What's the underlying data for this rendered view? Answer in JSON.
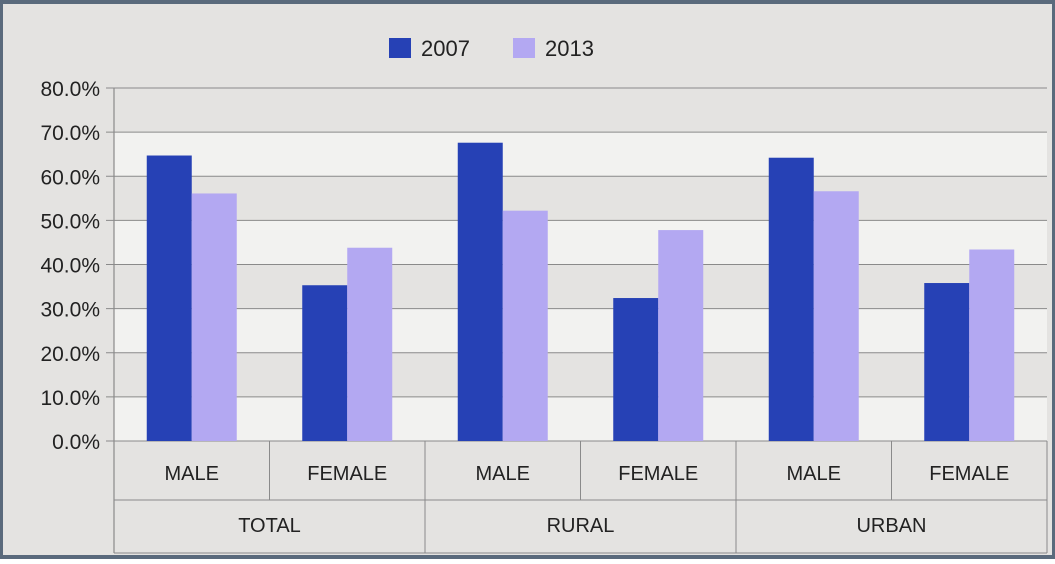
{
  "chart_data": {
    "type": "bar",
    "title": "",
    "xlabel": "",
    "ylabel": "",
    "groups": [
      {
        "label": "TOTAL",
        "categories": [
          "MALE",
          "FEMALE"
        ]
      },
      {
        "label": "RURAL",
        "categories": [
          "MALE",
          "FEMALE"
        ]
      },
      {
        "label": "URBAN",
        "categories": [
          "MALE",
          "FEMALE"
        ]
      }
    ],
    "categories": [
      "MALE",
      "FEMALE",
      "MALE",
      "FEMALE",
      "MALE",
      "FEMALE"
    ],
    "series": [
      {
        "name": "2007",
        "color": "#2641b5",
        "values": [
          64.7,
          35.3,
          67.6,
          32.4,
          64.2,
          35.8
        ]
      },
      {
        "name": "2013",
        "color": "#b3a8f2",
        "values": [
          56.1,
          43.8,
          52.2,
          47.8,
          56.6,
          43.4
        ]
      }
    ],
    "ylim": [
      0,
      80
    ],
    "yticks": [
      0,
      10,
      20,
      30,
      40,
      50,
      60,
      70,
      80
    ],
    "ytick_labels": [
      "0.0%",
      "10.0%",
      "20.0%",
      "30.0%",
      "40.0%",
      "50.0%",
      "60.0%",
      "70.0%",
      "80.0%"
    ],
    "grid": true,
    "legend_position": "top-center",
    "colors": {
      "background": "#e4e3e1",
      "band_light": "#f2f2f0",
      "gridline": "#8a8a8a",
      "border": "#5a6a7c"
    }
  }
}
